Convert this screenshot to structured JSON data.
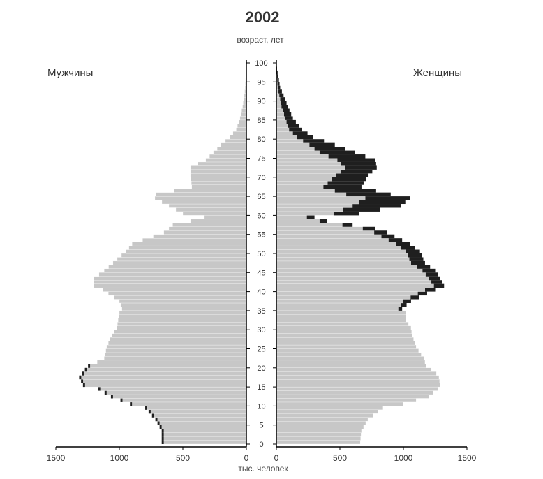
{
  "chart_data": {
    "type": "population-pyramid",
    "title": "2002",
    "ylabel": "возраст, лет",
    "xlabel": "тыс. человек",
    "left_label": "Мужчины",
    "right_label": "Женщины",
    "age_ticks": [
      0,
      5,
      10,
      15,
      20,
      25,
      30,
      35,
      40,
      45,
      50,
      55,
      60,
      65,
      70,
      75,
      80,
      85,
      90,
      95,
      100
    ],
    "x_ticks_left": [
      1500,
      1000,
      500,
      0
    ],
    "x_ticks_right": [
      0,
      500,
      1000,
      1500
    ],
    "xlim": [
      0,
      1500
    ],
    "ylim": [
      0,
      100
    ],
    "age_control_points": [
      0,
      3,
      6,
      9,
      10,
      12,
      14,
      15,
      17,
      18,
      20,
      22,
      25,
      28,
      30,
      32,
      34,
      35,
      37,
      40,
      41,
      43,
      45,
      47,
      50,
      52,
      55,
      56,
      57,
      58,
      59,
      60,
      62,
      64,
      65,
      67,
      70,
      72,
      74,
      76,
      78,
      80,
      82,
      85,
      88,
      90,
      93,
      96,
      98,
      100
    ],
    "men_thousands": [
      650,
      650,
      700,
      780,
      900,
      1050,
      1150,
      1270,
      1300,
      1280,
      1230,
      1120,
      1100,
      1060,
      1020,
      1010,
      1000,
      980,
      1000,
      1130,
      1200,
      1200,
      1120,
      1050,
      950,
      900,
      650,
      610,
      580,
      440,
      330,
      500,
      610,
      720,
      710,
      430,
      440,
      440,
      320,
      260,
      200,
      130,
      80,
      50,
      30,
      20,
      10,
      5,
      3,
      0
    ],
    "women_thousands": [
      660,
      670,
      720,
      840,
      1000,
      1200,
      1270,
      1290,
      1280,
      1260,
      1180,
      1160,
      1100,
      1070,
      1060,
      1020,
      1020,
      990,
      1060,
      1250,
      1320,
      1290,
      1250,
      1170,
      1130,
      1050,
      870,
      780,
      600,
      400,
      300,
      650,
      980,
      1050,
      900,
      670,
      720,
      790,
      780,
      620,
      460,
      290,
      200,
      130,
      90,
      70,
      30,
      15,
      5,
      0
    ],
    "women_excess": [
      0,
      0,
      0,
      0,
      0,
      0,
      0,
      0,
      0,
      0,
      0,
      0,
      0,
      0,
      0,
      0,
      0,
      30,
      60,
      80,
      80,
      90,
      100,
      110,
      110,
      110,
      100,
      100,
      80,
      60,
      60,
      200,
      380,
      350,
      350,
      300,
      250,
      250,
      300,
      280,
      200,
      130,
      100,
      60,
      50,
      40,
      20,
      10,
      5,
      0
    ],
    "colors": {
      "base": "#c7c7c7",
      "excess": "#1f1f1f",
      "row_separator": "#ffffff",
      "axis": "#000000"
    }
  }
}
